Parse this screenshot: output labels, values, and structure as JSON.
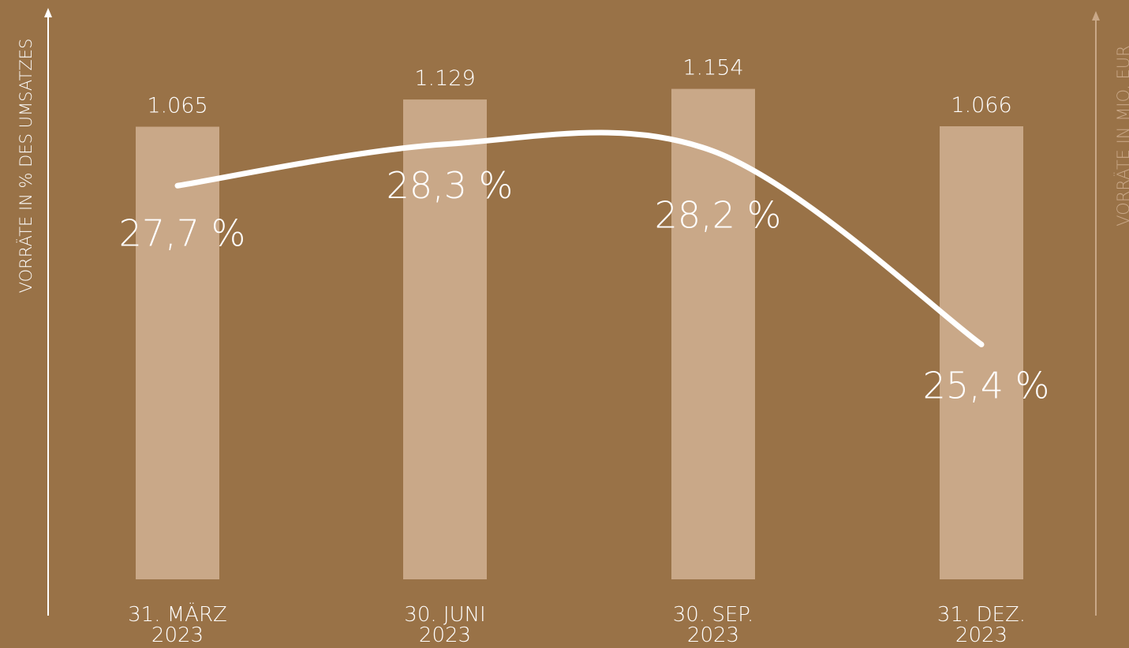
{
  "colors": {
    "background": "#997247",
    "bar": "#c9a888",
    "line": "#ffffff",
    "text": "#ffffff",
    "left_axis": "#ffffff",
    "right_axis": "#c9a888"
  },
  "chart_data": {
    "type": "bar",
    "categories": [
      [
        "31. MÄRZ",
        "2023"
      ],
      [
        "30. JUNI",
        "2023"
      ],
      [
        "30. SEP.",
        "2023"
      ],
      [
        "31. DEZ.",
        "2023"
      ]
    ],
    "bar_values": [
      1065,
      1129,
      1154,
      1066
    ],
    "bar_labels": [
      "1.065",
      "1.129",
      "1.154",
      "1.066"
    ],
    "line_values": [
      27.7,
      28.3,
      28.2,
      25.4
    ],
    "line_labels": [
      "27,7 %",
      "28,3 %",
      "28,2 %",
      "25,4 %"
    ],
    "y_left_label": "VORRÄTE IN % DES UMSATZES",
    "y_right_label": "VORRÄTE IN MIO. EUR",
    "bar_ylim": [
      0,
      1300
    ],
    "line_ylim": [
      22,
      30
    ],
    "grid": false,
    "legend": "none"
  }
}
